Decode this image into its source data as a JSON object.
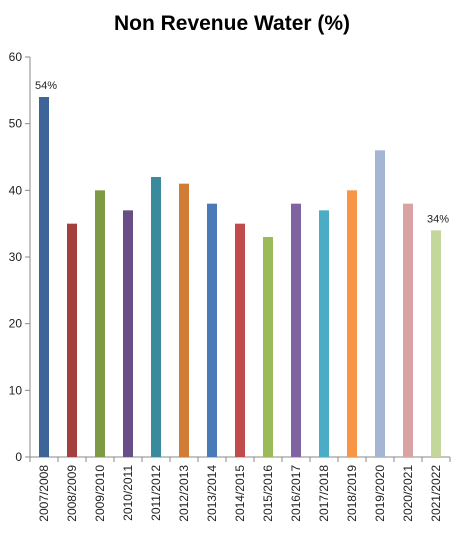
{
  "chart_data": {
    "type": "bar",
    "title": "Non Revenue Water (%)",
    "xlabel": "",
    "ylabel": "",
    "ylim": [
      0,
      60
    ],
    "yticks": [
      0,
      10,
      20,
      30,
      40,
      50,
      60
    ],
    "grid": false,
    "legend": "none",
    "categories": [
      "2007/2008",
      "2008/2009",
      "2009/2010",
      "2010/2011",
      "2011/2012",
      "2012/2013",
      "2013/2014",
      "2014/2015",
      "2015/2016",
      "2016/2017",
      "2017/2018",
      "2018/2019",
      "2019/2020",
      "2020/2021",
      "2021/2022"
    ],
    "values": [
      54,
      35,
      40,
      37,
      42,
      41,
      38,
      35,
      33,
      38,
      37,
      40,
      46,
      38,
      34
    ],
    "colors": [
      "#3d6598",
      "#a33f3c",
      "#7e9a44",
      "#684d87",
      "#3a8a9d",
      "#d07c35",
      "#4b7ab9",
      "#bf4c4a",
      "#9bbb59",
      "#8064a2",
      "#4bacc6",
      "#f79646",
      "#a5b6d5",
      "#d9a3a3",
      "#c3d69b"
    ],
    "data_labels": [
      {
        "index": 0,
        "text": "54%"
      },
      {
        "index": 14,
        "text": "34%"
      }
    ]
  }
}
